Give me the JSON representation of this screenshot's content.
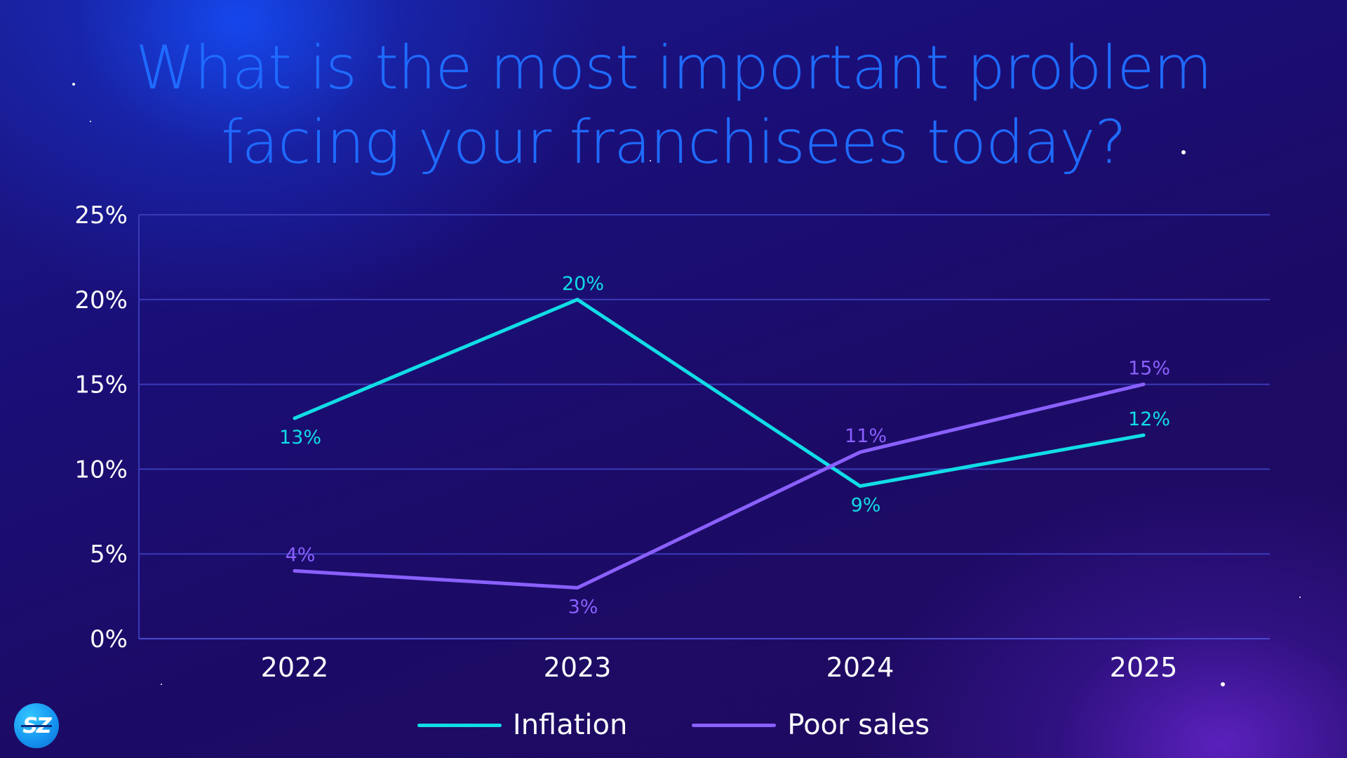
{
  "title_line1": "What is the most important problem",
  "title_line2": "facing your franchisees today?",
  "logo_text": "SZ",
  "colors": {
    "inflation": "#11dde6",
    "poor_sales": "#8a60ff",
    "title": "#1f6bff",
    "grid": "#3a3ab8"
  },
  "chart_data": {
    "type": "line",
    "title": "What is the most important problem facing your franchisees today?",
    "categories": [
      "2022",
      "2023",
      "2024",
      "2025"
    ],
    "series": [
      {
        "name": "Inflation",
        "values": [
          13,
          20,
          9,
          12
        ],
        "labels": [
          "13%",
          "20%",
          "9%",
          "12%"
        ],
        "color": "#11dde6"
      },
      {
        "name": "Poor sales",
        "values": [
          4,
          3,
          11,
          15
        ],
        "labels": [
          "4%",
          "3%",
          "11%",
          "15%"
        ],
        "color": "#8a60ff"
      }
    ],
    "ylim": [
      0,
      25
    ],
    "yticks": [
      0,
      5,
      10,
      15,
      20,
      25
    ],
    "ytick_labels": [
      "0%",
      "5%",
      "10%",
      "15%",
      "20%",
      "25%"
    ],
    "grid": true,
    "legend_position": "bottom-center"
  }
}
